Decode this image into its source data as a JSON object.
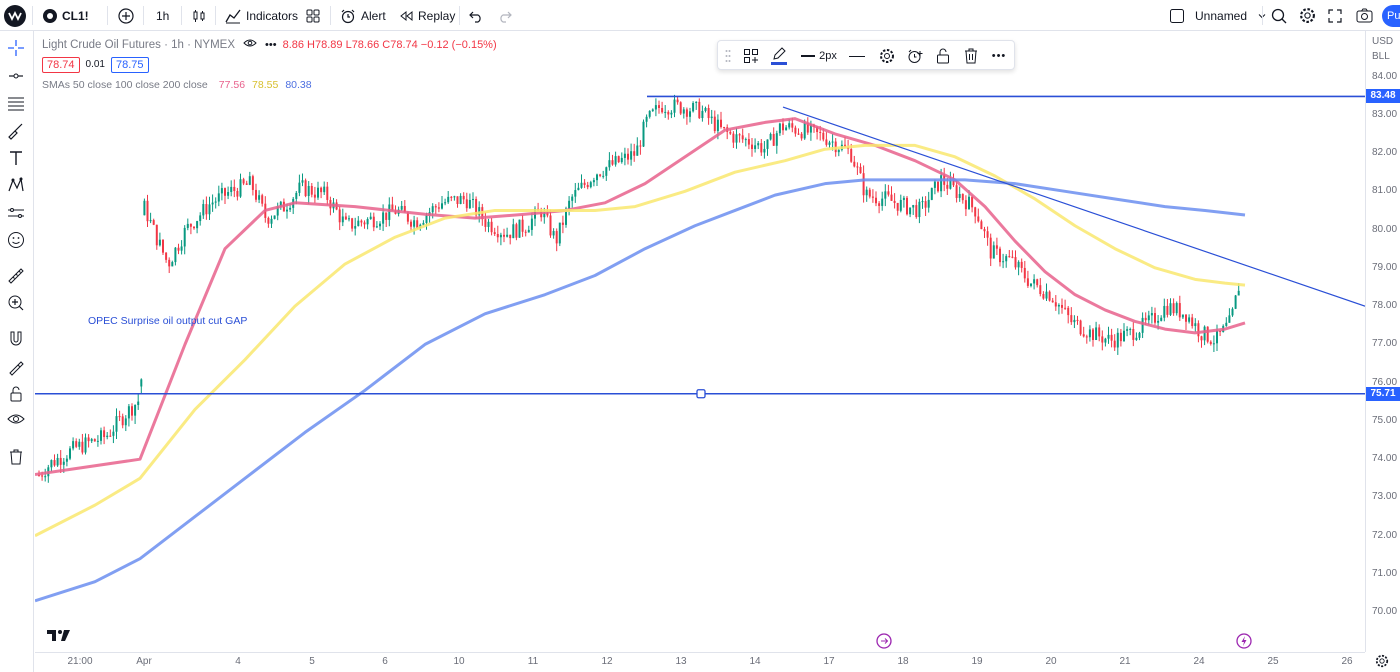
{
  "topbar": {
    "logo_icon": "tradingview-logo-icon",
    "symbol": "CL1!",
    "add_symbol_icon": "plus-circle-icon",
    "interval": "1h",
    "chart_type_icon": "candles-icon",
    "indicators_label": "Indicators",
    "layouts_icon": "layout-grid-icon",
    "alert_label": "Alert",
    "replay_label": "Replay",
    "undo_icon": "undo-icon",
    "redo_icon": "redo-icon",
    "layout_name": "Unnamed",
    "right_icons": [
      "search-icon",
      "gear-icon",
      "fullscreen-icon",
      "camera-icon"
    ],
    "profile_initial": "Pu"
  },
  "legend": {
    "title": "Light Crude Oil Futures · 1h · NYMEX",
    "ohlc_text": "8.86  H78.89  L78.66  C78.74  −0.12 (−0.15%)",
    "bid": "78.74",
    "spread": "0.01",
    "ask": "78.75",
    "sma_label": "SMAs 50 close 100 close 200 close",
    "sma50": "77.56",
    "sma100": "78.55",
    "sma200": "80.38"
  },
  "colors": {
    "accent": "#2962ff",
    "sma50": "#e8618c",
    "sma100": "#f9e76e",
    "sma200": "#6b8ef0",
    "up": "#089981",
    "down": "#f23645",
    "drawing": "#2a4fd6"
  },
  "drawbar": {
    "width_label": "2px",
    "icons": [
      "template-icon",
      "pen-color-icon",
      "line-width-icon",
      "line-style-icon",
      "settings-icon",
      "alert-add-icon",
      "unlock-icon",
      "trash-icon",
      "more-icon"
    ]
  },
  "annotation": {
    "text": "OPEC Surprise oil output cut GAP"
  },
  "price_axis": {
    "currency": "USD",
    "unit": "BLL",
    "ticks": [
      "84.00",
      "83.00",
      "82.00",
      "81.00",
      "80.00",
      "79.00",
      "78.00",
      "77.00",
      "76.00",
      "75.00",
      "74.00",
      "73.00",
      "72.00",
      "71.00",
      "70.00"
    ],
    "horizontal_line_1": "83.48",
    "horizontal_line_2": "75.71"
  },
  "time_axis": {
    "ticks": [
      "21:00",
      "Apr",
      "4",
      "5",
      "6",
      "10",
      "11",
      "12",
      "13",
      "14",
      "17",
      "18",
      "19",
      "20",
      "21",
      "24",
      "25",
      "26"
    ]
  },
  "left_tools": [
    "crosshair-icon",
    "trend-line-icon",
    "fib-icon",
    "brush-icon",
    "text-icon",
    "pattern-icon",
    "prediction-icon",
    "emoji-icon",
    "ruler-icon",
    "zoom-in-icon",
    "magnet-icon",
    "lock-drawing-icon",
    "lock-icon",
    "eye-icon",
    "trash-icon"
  ],
  "chart_data": {
    "type": "candlestick",
    "title": "Light Crude Oil Futures · 1h · NYMEX",
    "symbol": "CL1!",
    "interval": "1h",
    "ylim": [
      69.6,
      84.6
    ],
    "x_labels": [
      "21:00",
      "Apr",
      "4",
      "5",
      "6",
      "10",
      "11",
      "12",
      "13",
      "14",
      "17",
      "18",
      "19",
      "20",
      "21",
      "24",
      "25",
      "26"
    ],
    "price_path": [
      [
        0,
        73.5
      ],
      [
        15,
        73.9
      ],
      [
        40,
        74.3
      ],
      [
        70,
        74.6
      ],
      [
        90,
        75.2
      ],
      [
        105,
        75.6
      ],
      [
        108,
        80.6
      ],
      [
        122,
        79.7
      ],
      [
        132,
        79.1
      ],
      [
        150,
        80.0
      ],
      [
        175,
        80.7
      ],
      [
        195,
        81.0
      ],
      [
        215,
        81.2
      ],
      [
        230,
        80.3
      ],
      [
        248,
        80.6
      ],
      [
        265,
        81.1
      ],
      [
        290,
        80.9
      ],
      [
        310,
        80.1
      ],
      [
        340,
        80.3
      ],
      [
        360,
        80.5
      ],
      [
        380,
        80.2
      ],
      [
        405,
        80.7
      ],
      [
        430,
        80.8
      ],
      [
        450,
        80.2
      ],
      [
        470,
        79.9
      ],
      [
        490,
        80.1
      ],
      [
        505,
        80.5
      ],
      [
        520,
        79.7
      ],
      [
        535,
        80.8
      ],
      [
        560,
        81.5
      ],
      [
        585,
        81.8
      ],
      [
        600,
        82.0
      ],
      [
        610,
        82.8
      ],
      [
        625,
        83.25
      ],
      [
        645,
        83.2
      ],
      [
        665,
        83.1
      ],
      [
        685,
        82.6
      ],
      [
        700,
        82.4
      ],
      [
        715,
        82.3
      ],
      [
        730,
        82.1
      ],
      [
        745,
        82.7
      ],
      [
        765,
        82.6
      ],
      [
        790,
        82.4
      ],
      [
        815,
        82.0
      ],
      [
        830,
        80.9
      ],
      [
        850,
        80.8
      ],
      [
        870,
        80.6
      ],
      [
        885,
        80.5
      ],
      [
        905,
        81.3
      ],
      [
        920,
        81.0
      ],
      [
        940,
        80.5
      ],
      [
        955,
        79.4
      ],
      [
        975,
        79.2
      ],
      [
        995,
        78.6
      ],
      [
        1015,
        78.3
      ],
      [
        1035,
        77.6
      ],
      [
        1055,
        77.3
      ],
      [
        1075,
        77.1
      ],
      [
        1095,
        77.3
      ],
      [
        1115,
        77.6
      ],
      [
        1130,
        78.0
      ],
      [
        1150,
        77.8
      ],
      [
        1165,
        77.3
      ],
      [
        1180,
        77.1
      ],
      [
        1195,
        77.6
      ],
      [
        1205,
        78.8
      ]
    ],
    "series": [
      {
        "name": "SMA 50",
        "last": 77.56,
        "points": [
          [
            0,
            73.6
          ],
          [
            105,
            74.0
          ],
          [
            150,
            77.0
          ],
          [
            190,
            79.5
          ],
          [
            230,
            80.5
          ],
          [
            260,
            80.7
          ],
          [
            320,
            80.6
          ],
          [
            390,
            80.4
          ],
          [
            440,
            80.3
          ],
          [
            490,
            80.4
          ],
          [
            530,
            80.5
          ],
          [
            570,
            80.7
          ],
          [
            610,
            81.2
          ],
          [
            650,
            81.9
          ],
          [
            690,
            82.6
          ],
          [
            730,
            82.8
          ],
          [
            760,
            82.9
          ],
          [
            800,
            82.5
          ],
          [
            840,
            82.2
          ],
          [
            880,
            81.8
          ],
          [
            920,
            81.3
          ],
          [
            950,
            80.6
          ],
          [
            980,
            79.7
          ],
          [
            1010,
            78.9
          ],
          [
            1040,
            78.3
          ],
          [
            1070,
            77.9
          ],
          [
            1100,
            77.6
          ],
          [
            1130,
            77.4
          ],
          [
            1160,
            77.3
          ],
          [
            1190,
            77.4
          ],
          [
            1210,
            77.56
          ]
        ]
      },
      {
        "name": "SMA 100",
        "last": 78.55,
        "points": [
          [
            0,
            72.0
          ],
          [
            60,
            72.8
          ],
          [
            105,
            73.5
          ],
          [
            160,
            75.3
          ],
          [
            210,
            76.6
          ],
          [
            260,
            78.0
          ],
          [
            310,
            79.1
          ],
          [
            360,
            79.8
          ],
          [
            410,
            80.3
          ],
          [
            460,
            80.5
          ],
          [
            520,
            80.5
          ],
          [
            560,
            80.5
          ],
          [
            600,
            80.6
          ],
          [
            650,
            81.0
          ],
          [
            700,
            81.5
          ],
          [
            750,
            81.8
          ],
          [
            790,
            82.1
          ],
          [
            830,
            82.2
          ],
          [
            880,
            82.2
          ],
          [
            920,
            81.9
          ],
          [
            960,
            81.4
          ],
          [
            1000,
            80.8
          ],
          [
            1040,
            80.1
          ],
          [
            1080,
            79.5
          ],
          [
            1120,
            79.0
          ],
          [
            1160,
            78.7
          ],
          [
            1190,
            78.6
          ],
          [
            1210,
            78.55
          ]
        ]
      },
      {
        "name": "SMA 200",
        "last": 80.38,
        "points": [
          [
            0,
            70.3
          ],
          [
            60,
            70.8
          ],
          [
            105,
            71.4
          ],
          [
            160,
            72.5
          ],
          [
            210,
            73.5
          ],
          [
            270,
            74.7
          ],
          [
            330,
            75.8
          ],
          [
            390,
            77.0
          ],
          [
            450,
            77.8
          ],
          [
            510,
            78.3
          ],
          [
            560,
            78.8
          ],
          [
            610,
            79.5
          ],
          [
            660,
            80.1
          ],
          [
            700,
            80.5
          ],
          [
            740,
            80.9
          ],
          [
            790,
            81.2
          ],
          [
            830,
            81.3
          ],
          [
            880,
            81.3
          ],
          [
            930,
            81.3
          ],
          [
            980,
            81.2
          ],
          [
            1030,
            81.0
          ],
          [
            1080,
            80.8
          ],
          [
            1130,
            80.6
          ],
          [
            1170,
            80.5
          ],
          [
            1210,
            80.38
          ]
        ]
      }
    ],
    "drawings": [
      {
        "type": "horizontal_line",
        "price": 83.48
      },
      {
        "type": "horizontal_line",
        "price": 75.71
      },
      {
        "type": "trend_line",
        "from": [
          748,
          83.2
        ],
        "to": [
          1330,
          78.0
        ]
      }
    ],
    "last_price": 78.74,
    "grid": false
  }
}
